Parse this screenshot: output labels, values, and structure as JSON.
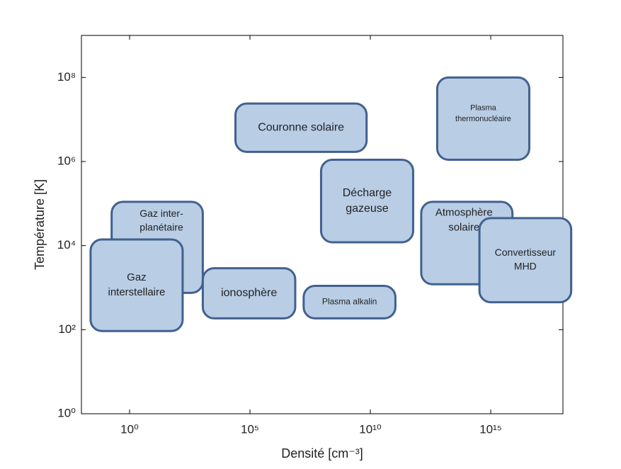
{
  "chart_data": {
    "type": "region",
    "x_label": "Densité [cm⁻³]",
    "y_label": "Température [K]",
    "xlim": [
      0.01,
      1e+18
    ],
    "ylim": [
      1,
      1000000000.0
    ],
    "log_x": true,
    "log_y": true,
    "xticks": [
      {
        "value": 1,
        "label": "10⁰"
      },
      {
        "value": 100000.0,
        "label": "10⁵"
      },
      {
        "value": 10000000000.0,
        "label": "10¹⁰"
      },
      {
        "value": 1000000000000000.0,
        "label": "10¹⁵"
      }
    ],
    "yticks": [
      {
        "value": 1,
        "label": "10⁰"
      },
      {
        "value": 100,
        "label": "10²"
      },
      {
        "value": 10000.0,
        "label": "10⁴"
      },
      {
        "value": 1000000.0,
        "label": "10⁶"
      },
      {
        "value": 100000000.0,
        "label": "10⁸"
      }
    ],
    "fill_color": "#b9cde5",
    "edge_color": "#41618f",
    "regions": [
      {
        "label": [
          "Couronne solaire"
        ],
        "x": [
          25000,
          7000000000.0
        ],
        "y": [
          1700000.0,
          24000000.0
        ]
      },
      {
        "label": [
          "Plasma",
          "thermonucléaire"
        ],
        "x": [
          6000000000000.0,
          4e+16
        ],
        "y": [
          1100000.0,
          100000000.0
        ]
      },
      {
        "label": [
          "Décharge",
          "gazeuse"
        ],
        "x": [
          90000000.0,
          600000000000.0
        ],
        "y": [
          12000,
          1100000.0
        ]
      },
      {
        "label": [
          "Atmosphère",
          "solaire"
        ],
        "x": [
          1300000000000.0,
          8000000000000000.0
        ],
        "y": [
          1200,
          110000
        ]
      },
      {
        "label": [
          "Convertisseur",
          "MHD"
        ],
        "x": [
          340000000000000.0,
          2.2e+18
        ],
        "y": [
          450,
          45000
        ]
      },
      {
        "label": [
          "Gaz inter-",
          "planétaire"
        ],
        "x": [
          0.18,
          1100
        ],
        "y": [
          750,
          110000
        ]
      },
      {
        "label": [
          "Gaz",
          "interstellaire"
        ],
        "x": [
          0.024,
          160
        ],
        "y": [
          93,
          14000
        ]
      },
      {
        "label": [
          "ionosphère"
        ],
        "x": [
          1100,
          7600000.0
        ],
        "y": [
          186,
          2900
        ]
      },
      {
        "label": [
          "Plasma alkalin"
        ],
        "x": [
          17000000.0,
          110000000000.0
        ],
        "y": [
          186,
          1100
        ]
      }
    ]
  }
}
